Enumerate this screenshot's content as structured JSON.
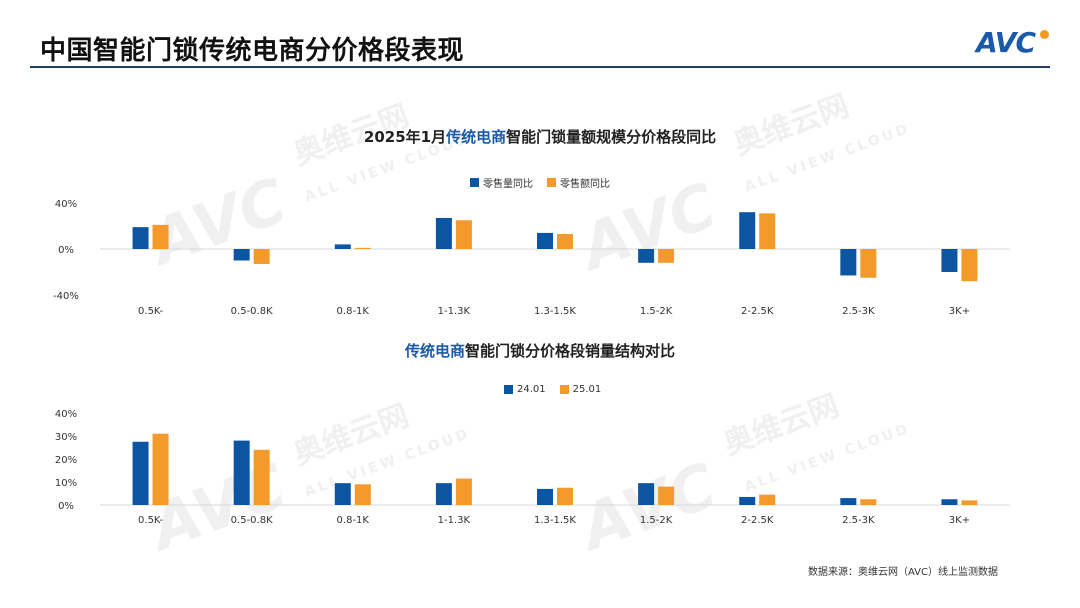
{
  "header": {
    "title": "中国智能门锁传统电商分价格段表现",
    "logo_text": "AVC"
  },
  "watermarks": [
    {
      "big": "AVC",
      "cn": "奥维云网",
      "en": "ALL VIEW CLOUD"
    },
    {
      "big": "AVC",
      "cn": "奥维云网",
      "en": "ALL VIEW CLOUD"
    }
  ],
  "colors": {
    "blue": "#0b55a3",
    "orange": "#f39a2b",
    "highlight": "#1b5aa8"
  },
  "chart_data": [
    {
      "type": "bar",
      "title_prefix": "2025年1月",
      "title_highlight": "传统电商",
      "title_suffix": "智能门锁量额规模分价格段同比",
      "categories": [
        "0.5K-",
        "0.5-0.8K",
        "0.8-1K",
        "1-1.3K",
        "1.3-1.5K",
        "1.5-2K",
        "2-2.5K",
        "2.5-3K",
        "3K+"
      ],
      "series": [
        {
          "name": "零售量同比",
          "color": "#0b55a3",
          "values": [
            19,
            -10,
            4,
            27,
            14,
            -12,
            32,
            -23,
            -20
          ]
        },
        {
          "name": "零售额同比",
          "color": "#f39a2b",
          "values": [
            21,
            -13,
            1,
            25,
            13,
            -12,
            31,
            -25,
            -28
          ]
        }
      ],
      "yticks": [
        "40%",
        "0%",
        "-40%"
      ],
      "ylim": [
        -40,
        40
      ],
      "legend": "top-center"
    },
    {
      "type": "bar",
      "title_prefix": "",
      "title_highlight": "传统电商",
      "title_suffix": "智能门锁分价格段销量结构对比",
      "categories": [
        "0.5K-",
        "0.5-0.8K",
        "0.8-1K",
        "1-1.3K",
        "1.3-1.5K",
        "1.5-2K",
        "2-2.5K",
        "2.5-3K",
        "3K+"
      ],
      "series": [
        {
          "name": "24.01",
          "color": "#0b55a3",
          "values": [
            27.5,
            28,
            9.5,
            9.5,
            7,
            9.5,
            3.5,
            3,
            2.5
          ]
        },
        {
          "name": "25.01",
          "color": "#f39a2b",
          "values": [
            31,
            24,
            9,
            11.5,
            7.5,
            8,
            4.5,
            2.5,
            2
          ]
        }
      ],
      "yticks": [
        "40%",
        "30%",
        "20%",
        "10%",
        "0%"
      ],
      "ylim": [
        0,
        40
      ],
      "legend": "top-center"
    }
  ],
  "footer": {
    "source": "数据来源：奥维云网（AVC）线上监测数据"
  }
}
